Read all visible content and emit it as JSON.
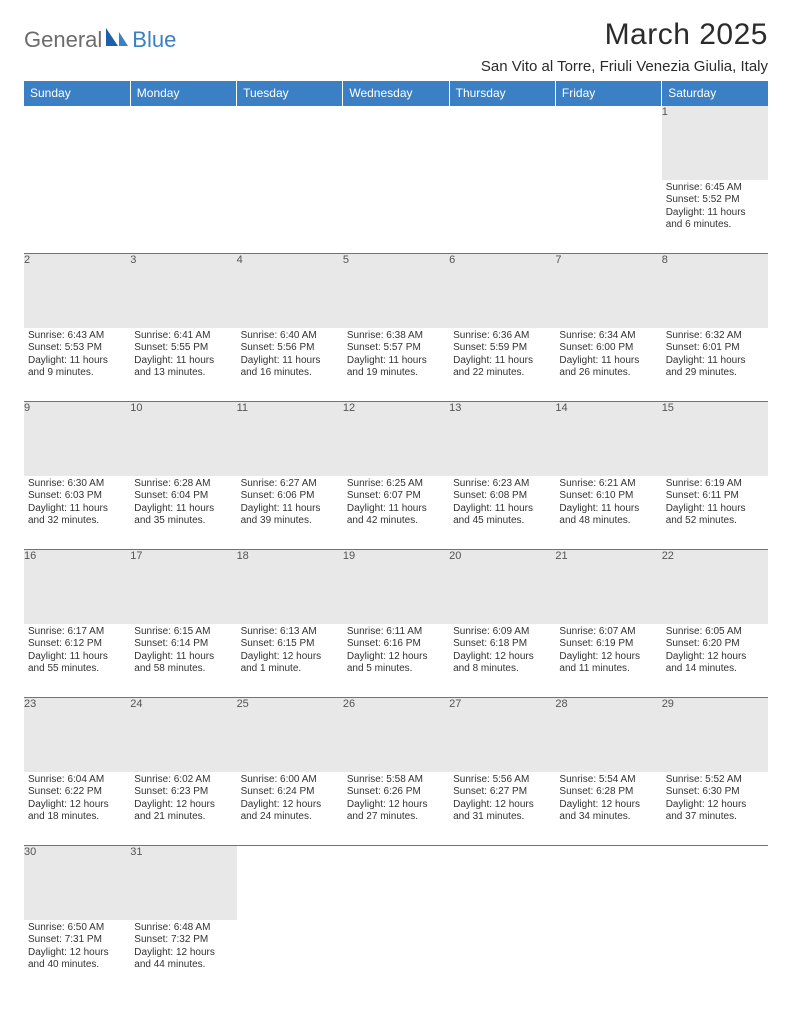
{
  "brand": {
    "text_left": "General",
    "text_right": "Blue"
  },
  "title": "March 2025",
  "location": "San Vito al Torre, Friuli Venezia Giulia, Italy",
  "colors": {
    "header_bg": "#3b7fc4",
    "header_text": "#ffffff",
    "daynum_bg": "#e8e8e8",
    "daynum_text": "#555555",
    "body_text": "#333333",
    "border": "#3b7fc4",
    "logo_gray": "#6c6c6c",
    "logo_blue": "#3b7fc4",
    "background": "#ffffff"
  },
  "fonts": {
    "family": "Arial",
    "title_size_pt": 22,
    "location_size_pt": 11,
    "weekday_size_pt": 9,
    "daynum_size_pt": 8,
    "cell_size_pt": 7.5
  },
  "weekdays": [
    "Sunday",
    "Monday",
    "Tuesday",
    "Wednesday",
    "Thursday",
    "Friday",
    "Saturday"
  ],
  "weeks": [
    [
      null,
      null,
      null,
      null,
      null,
      null,
      {
        "n": "1",
        "sunrise": "Sunrise: 6:45 AM",
        "sunset": "Sunset: 5:52 PM",
        "daylight": "Daylight: 11 hours and 6 minutes."
      }
    ],
    [
      {
        "n": "2",
        "sunrise": "Sunrise: 6:43 AM",
        "sunset": "Sunset: 5:53 PM",
        "daylight": "Daylight: 11 hours and 9 minutes."
      },
      {
        "n": "3",
        "sunrise": "Sunrise: 6:41 AM",
        "sunset": "Sunset: 5:55 PM",
        "daylight": "Daylight: 11 hours and 13 minutes."
      },
      {
        "n": "4",
        "sunrise": "Sunrise: 6:40 AM",
        "sunset": "Sunset: 5:56 PM",
        "daylight": "Daylight: 11 hours and 16 minutes."
      },
      {
        "n": "5",
        "sunrise": "Sunrise: 6:38 AM",
        "sunset": "Sunset: 5:57 PM",
        "daylight": "Daylight: 11 hours and 19 minutes."
      },
      {
        "n": "6",
        "sunrise": "Sunrise: 6:36 AM",
        "sunset": "Sunset: 5:59 PM",
        "daylight": "Daylight: 11 hours and 22 minutes."
      },
      {
        "n": "7",
        "sunrise": "Sunrise: 6:34 AM",
        "sunset": "Sunset: 6:00 PM",
        "daylight": "Daylight: 11 hours and 26 minutes."
      },
      {
        "n": "8",
        "sunrise": "Sunrise: 6:32 AM",
        "sunset": "Sunset: 6:01 PM",
        "daylight": "Daylight: 11 hours and 29 minutes."
      }
    ],
    [
      {
        "n": "9",
        "sunrise": "Sunrise: 6:30 AM",
        "sunset": "Sunset: 6:03 PM",
        "daylight": "Daylight: 11 hours and 32 minutes."
      },
      {
        "n": "10",
        "sunrise": "Sunrise: 6:28 AM",
        "sunset": "Sunset: 6:04 PM",
        "daylight": "Daylight: 11 hours and 35 minutes."
      },
      {
        "n": "11",
        "sunrise": "Sunrise: 6:27 AM",
        "sunset": "Sunset: 6:06 PM",
        "daylight": "Daylight: 11 hours and 39 minutes."
      },
      {
        "n": "12",
        "sunrise": "Sunrise: 6:25 AM",
        "sunset": "Sunset: 6:07 PM",
        "daylight": "Daylight: 11 hours and 42 minutes."
      },
      {
        "n": "13",
        "sunrise": "Sunrise: 6:23 AM",
        "sunset": "Sunset: 6:08 PM",
        "daylight": "Daylight: 11 hours and 45 minutes."
      },
      {
        "n": "14",
        "sunrise": "Sunrise: 6:21 AM",
        "sunset": "Sunset: 6:10 PM",
        "daylight": "Daylight: 11 hours and 48 minutes."
      },
      {
        "n": "15",
        "sunrise": "Sunrise: 6:19 AM",
        "sunset": "Sunset: 6:11 PM",
        "daylight": "Daylight: 11 hours and 52 minutes."
      }
    ],
    [
      {
        "n": "16",
        "sunrise": "Sunrise: 6:17 AM",
        "sunset": "Sunset: 6:12 PM",
        "daylight": "Daylight: 11 hours and 55 minutes."
      },
      {
        "n": "17",
        "sunrise": "Sunrise: 6:15 AM",
        "sunset": "Sunset: 6:14 PM",
        "daylight": "Daylight: 11 hours and 58 minutes."
      },
      {
        "n": "18",
        "sunrise": "Sunrise: 6:13 AM",
        "sunset": "Sunset: 6:15 PM",
        "daylight": "Daylight: 12 hours and 1 minute."
      },
      {
        "n": "19",
        "sunrise": "Sunrise: 6:11 AM",
        "sunset": "Sunset: 6:16 PM",
        "daylight": "Daylight: 12 hours and 5 minutes."
      },
      {
        "n": "20",
        "sunrise": "Sunrise: 6:09 AM",
        "sunset": "Sunset: 6:18 PM",
        "daylight": "Daylight: 12 hours and 8 minutes."
      },
      {
        "n": "21",
        "sunrise": "Sunrise: 6:07 AM",
        "sunset": "Sunset: 6:19 PM",
        "daylight": "Daylight: 12 hours and 11 minutes."
      },
      {
        "n": "22",
        "sunrise": "Sunrise: 6:05 AM",
        "sunset": "Sunset: 6:20 PM",
        "daylight": "Daylight: 12 hours and 14 minutes."
      }
    ],
    [
      {
        "n": "23",
        "sunrise": "Sunrise: 6:04 AM",
        "sunset": "Sunset: 6:22 PM",
        "daylight": "Daylight: 12 hours and 18 minutes."
      },
      {
        "n": "24",
        "sunrise": "Sunrise: 6:02 AM",
        "sunset": "Sunset: 6:23 PM",
        "daylight": "Daylight: 12 hours and 21 minutes."
      },
      {
        "n": "25",
        "sunrise": "Sunrise: 6:00 AM",
        "sunset": "Sunset: 6:24 PM",
        "daylight": "Daylight: 12 hours and 24 minutes."
      },
      {
        "n": "26",
        "sunrise": "Sunrise: 5:58 AM",
        "sunset": "Sunset: 6:26 PM",
        "daylight": "Daylight: 12 hours and 27 minutes."
      },
      {
        "n": "27",
        "sunrise": "Sunrise: 5:56 AM",
        "sunset": "Sunset: 6:27 PM",
        "daylight": "Daylight: 12 hours and 31 minutes."
      },
      {
        "n": "28",
        "sunrise": "Sunrise: 5:54 AM",
        "sunset": "Sunset: 6:28 PM",
        "daylight": "Daylight: 12 hours and 34 minutes."
      },
      {
        "n": "29",
        "sunrise": "Sunrise: 5:52 AM",
        "sunset": "Sunset: 6:30 PM",
        "daylight": "Daylight: 12 hours and 37 minutes."
      }
    ],
    [
      {
        "n": "30",
        "sunrise": "Sunrise: 6:50 AM",
        "sunset": "Sunset: 7:31 PM",
        "daylight": "Daylight: 12 hours and 40 minutes."
      },
      {
        "n": "31",
        "sunrise": "Sunrise: 6:48 AM",
        "sunset": "Sunset: 7:32 PM",
        "daylight": "Daylight: 12 hours and 44 minutes."
      },
      null,
      null,
      null,
      null,
      null
    ]
  ]
}
